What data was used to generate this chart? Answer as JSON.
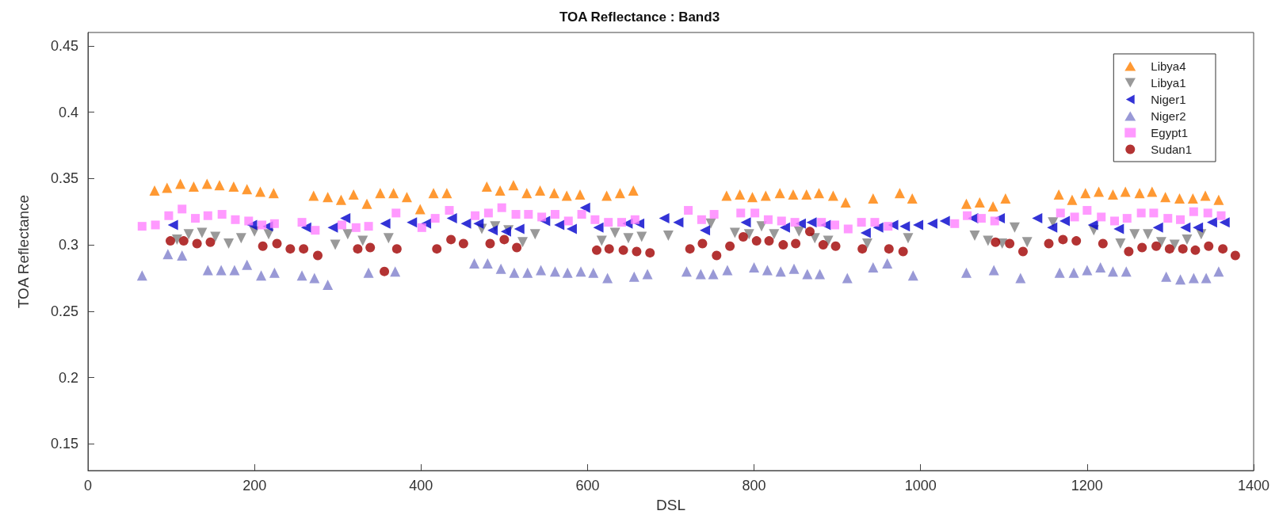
{
  "chart_data": {
    "type": "scatter",
    "title": "TOA Reflectance : Band3",
    "xlabel": "DSL",
    "ylabel": "TOA Reflectance",
    "xlim": [
      0,
      1400
    ],
    "xticks": [
      0,
      200,
      400,
      600,
      800,
      1000,
      1200,
      1400
    ],
    "ylim": [
      0.13,
      0.46
    ],
    "yticks": [
      0.15,
      0.2,
      0.25,
      0.3,
      0.35,
      0.4,
      0.45
    ],
    "grid": false,
    "legend": "top right",
    "series": [
      {
        "name": "Libya4",
        "color": "#ff8000",
        "marker": "triangle",
        "x": [
          80,
          95,
          111,
          127,
          143,
          158,
          175,
          191,
          207,
          223,
          271,
          288,
          304,
          319,
          335,
          351,
          367,
          383,
          399,
          415,
          431,
          479,
          495,
          511,
          527,
          543,
          560,
          575,
          591,
          623,
          639,
          655,
          767,
          783,
          798,
          814,
          831,
          847,
          863,
          878,
          895,
          910,
          943,
          975,
          990,
          1055,
          1071,
          1087,
          1102,
          1166,
          1182,
          1198,
          1214,
          1231,
          1246,
          1263,
          1278,
          1294,
          1311,
          1327,
          1342,
          1358
        ],
        "values": [
          0.341,
          0.343,
          0.346,
          0.344,
          0.346,
          0.345,
          0.344,
          0.342,
          0.34,
          0.339,
          0.337,
          0.336,
          0.334,
          0.338,
          0.331,
          0.339,
          0.339,
          0.336,
          0.327,
          0.339,
          0.339,
          0.344,
          0.341,
          0.345,
          0.339,
          0.341,
          0.339,
          0.337,
          0.338,
          0.337,
          0.339,
          0.341,
          0.337,
          0.338,
          0.336,
          0.337,
          0.339,
          0.338,
          0.338,
          0.339,
          0.337,
          0.332,
          0.335,
          0.339,
          0.335,
          0.331,
          0.332,
          0.329,
          0.335,
          0.338,
          0.334,
          0.339,
          0.34,
          0.338,
          0.34,
          0.339,
          0.34,
          0.336,
          0.335,
          0.335,
          0.337,
          0.334
        ]
      },
      {
        "name": "Libya1",
        "color": "#808080",
        "marker": "triangle-down",
        "x": [
          107,
          121,
          137,
          153,
          169,
          184,
          200,
          217,
          297,
          312,
          330,
          361,
          473,
          489,
          505,
          522,
          537,
          617,
          633,
          649,
          665,
          697,
          748,
          777,
          794,
          809,
          824,
          854,
          873,
          889,
          936,
          985,
          1065,
          1081,
          1098,
          1113,
          1128,
          1159,
          1208,
          1240,
          1257,
          1273,
          1289,
          1305,
          1320,
          1337
        ],
        "values": [
          0.304,
          0.308,
          0.309,
          0.306,
          0.301,
          0.305,
          0.31,
          0.308,
          0.3,
          0.308,
          0.303,
          0.305,
          0.312,
          0.314,
          0.311,
          0.302,
          0.308,
          0.303,
          0.309,
          0.305,
          0.306,
          0.307,
          0.316,
          0.309,
          0.308,
          0.314,
          0.308,
          0.31,
          0.305,
          0.303,
          0.301,
          0.305,
          0.307,
          0.303,
          0.301,
          0.313,
          0.302,
          0.317,
          0.311,
          0.301,
          0.308,
          0.308,
          0.302,
          0.3,
          0.304,
          0.308
        ]
      },
      {
        "name": "Niger1",
        "color": "#0000cc",
        "marker": "triangle-left",
        "x": [
          102,
          197,
          216,
          262,
          294,
          309,
          357,
          389,
          406,
          437,
          454,
          469,
          486,
          502,
          518,
          549,
          566,
          581,
          597,
          613,
          648,
          662,
          692,
          709,
          741,
          790,
          837,
          856,
          869,
          886,
          934,
          949,
          967,
          981,
          997,
          1014,
          1029,
          1063,
          1095,
          1140,
          1158,
          1173,
          1207,
          1238,
          1285,
          1318,
          1333,
          1350,
          1365
        ],
        "values": [
          0.315,
          0.315,
          0.314,
          0.313,
          0.313,
          0.32,
          0.316,
          0.317,
          0.316,
          0.32,
          0.316,
          0.316,
          0.311,
          0.31,
          0.312,
          0.318,
          0.315,
          0.312,
          0.328,
          0.313,
          0.316,
          0.316,
          0.32,
          0.317,
          0.311,
          0.317,
          0.313,
          0.316,
          0.317,
          0.315,
          0.309,
          0.313,
          0.315,
          0.314,
          0.315,
          0.316,
          0.318,
          0.32,
          0.32,
          0.32,
          0.313,
          0.318,
          0.315,
          0.312,
          0.313,
          0.313,
          0.313,
          0.317,
          0.317
        ]
      },
      {
        "name": "Niger2",
        "color": "#8080cc",
        "marker": "triangle",
        "x": [
          65,
          96,
          113,
          144,
          160,
          176,
          191,
          208,
          224,
          257,
          272,
          288,
          337,
          369,
          464,
          480,
          496,
          512,
          528,
          544,
          561,
          576,
          592,
          607,
          624,
          656,
          672,
          719,
          736,
          751,
          768,
          800,
          816,
          832,
          848,
          864,
          879,
          912,
          943,
          960,
          991,
          1055,
          1088,
          1120,
          1167,
          1184,
          1200,
          1216,
          1231,
          1247,
          1295,
          1312,
          1328,
          1343,
          1358
        ],
        "values": [
          0.277,
          0.293,
          0.292,
          0.281,
          0.281,
          0.281,
          0.285,
          0.277,
          0.279,
          0.277,
          0.275,
          0.27,
          0.279,
          0.28,
          0.286,
          0.286,
          0.282,
          0.279,
          0.279,
          0.281,
          0.28,
          0.279,
          0.28,
          0.279,
          0.275,
          0.276,
          0.278,
          0.28,
          0.278,
          0.278,
          0.281,
          0.283,
          0.281,
          0.28,
          0.282,
          0.278,
          0.278,
          0.275,
          0.283,
          0.286,
          0.277,
          0.279,
          0.281,
          0.275,
          0.279,
          0.279,
          0.281,
          0.283,
          0.28,
          0.28,
          0.276,
          0.274,
          0.275,
          0.275,
          0.28
        ]
      },
      {
        "name": "Egypt1",
        "color": "#ff80ff",
        "marker": "square",
        "x": [
          65,
          81,
          97,
          113,
          129,
          144,
          161,
          177,
          193,
          209,
          224,
          257,
          273,
          305,
          322,
          337,
          370,
          401,
          417,
          434,
          465,
          481,
          497,
          514,
          529,
          545,
          561,
          577,
          593,
          609,
          625,
          641,
          657,
          721,
          737,
          752,
          784,
          801,
          817,
          833,
          849,
          881,
          897,
          913,
          929,
          945,
          961,
          1041,
          1056,
          1073,
          1089,
          1168,
          1185,
          1200,
          1217,
          1233,
          1248,
          1265,
          1280,
          1297,
          1312,
          1328,
          1345,
          1361
        ],
        "values": [
          0.314,
          0.315,
          0.322,
          0.327,
          0.32,
          0.322,
          0.323,
          0.319,
          0.318,
          0.315,
          0.316,
          0.317,
          0.311,
          0.315,
          0.313,
          0.314,
          0.324,
          0.313,
          0.32,
          0.326,
          0.322,
          0.324,
          0.328,
          0.323,
          0.323,
          0.321,
          0.323,
          0.318,
          0.323,
          0.319,
          0.317,
          0.317,
          0.319,
          0.326,
          0.319,
          0.323,
          0.324,
          0.324,
          0.319,
          0.318,
          0.317,
          0.317,
          0.315,
          0.312,
          0.317,
          0.317,
          0.314,
          0.316,
          0.322,
          0.32,
          0.318,
          0.324,
          0.321,
          0.326,
          0.321,
          0.318,
          0.32,
          0.324,
          0.324,
          0.32,
          0.319,
          0.325,
          0.324,
          0.322
        ]
      },
      {
        "name": "Sudan1",
        "color": "#a00000",
        "marker": "circle",
        "x": [
          99,
          115,
          131,
          147,
          210,
          227,
          243,
          259,
          276,
          324,
          339,
          356,
          371,
          419,
          436,
          451,
          483,
          500,
          515,
          611,
          626,
          643,
          659,
          675,
          723,
          738,
          755,
          771,
          787,
          803,
          818,
          835,
          850,
          867,
          883,
          898,
          930,
          962,
          979,
          1090,
          1107,
          1123,
          1154,
          1171,
          1187,
          1219,
          1250,
          1266,
          1283,
          1299,
          1315,
          1330,
          1346,
          1363,
          1378
        ],
        "values": [
          0.303,
          0.303,
          0.301,
          0.302,
          0.299,
          0.301,
          0.297,
          0.297,
          0.292,
          0.297,
          0.298,
          0.28,
          0.297,
          0.297,
          0.304,
          0.301,
          0.301,
          0.304,
          0.298,
          0.296,
          0.297,
          0.296,
          0.295,
          0.294,
          0.297,
          0.301,
          0.292,
          0.299,
          0.306,
          0.303,
          0.303,
          0.3,
          0.301,
          0.31,
          0.3,
          0.299,
          0.297,
          0.297,
          0.295,
          0.302,
          0.301,
          0.295,
          0.301,
          0.304,
          0.303,
          0.301,
          0.295,
          0.298,
          0.299,
          0.297,
          0.297,
          0.296,
          0.299,
          0.297,
          0.292
        ]
      }
    ]
  }
}
